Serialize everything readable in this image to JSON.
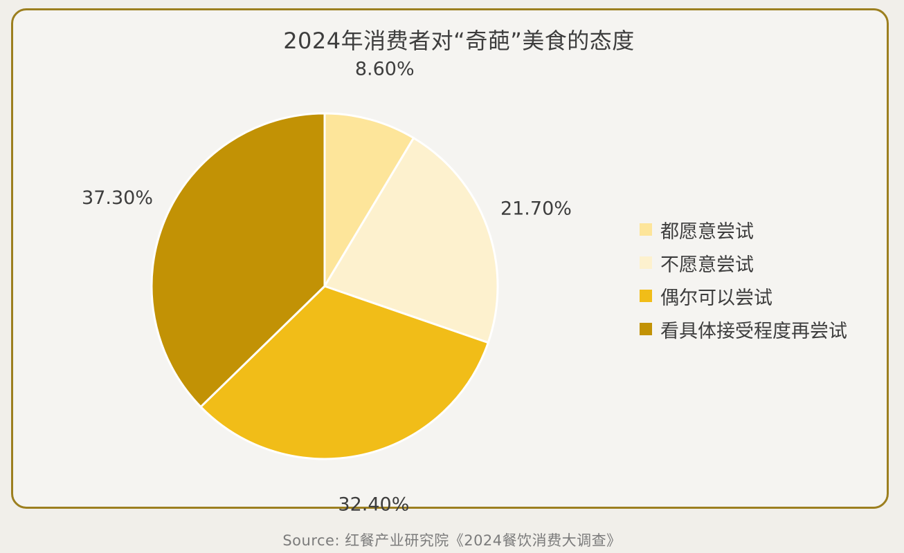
{
  "chart_data": {
    "type": "pie",
    "title": "2024年消费者对“奇葩”美食的态度",
    "categories": [
      "都愿意尝试",
      "不愿意尝试",
      "偶尔可以尝试",
      "看具体接受程度再尝试"
    ],
    "values": [
      8.6,
      21.7,
      32.4,
      37.3
    ],
    "value_labels": [
      "8.60%",
      "21.70%",
      "32.40%",
      "37.30%"
    ],
    "colors": [
      "#fde59a",
      "#fdf1ce",
      "#f1bd18",
      "#c29205"
    ],
    "legend_position": "right"
  },
  "source": "Source: 红餐产业研究院《2024餐饮消费大调查》"
}
